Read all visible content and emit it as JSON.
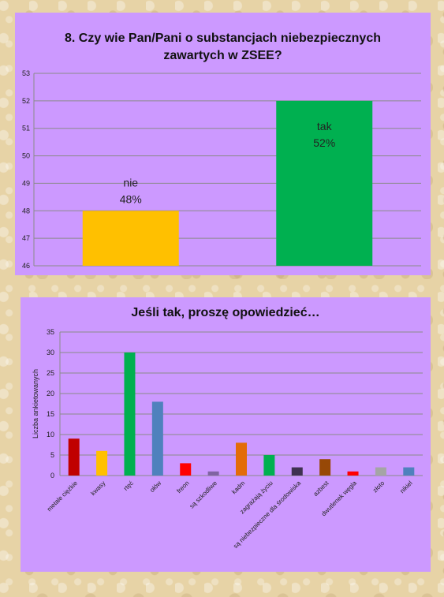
{
  "chart_data": [
    {
      "type": "bar",
      "title_lines": [
        "8. Czy wie Pan/Pani o substancjach niebezpiecznych",
        "zawartych w ZSEE?"
      ],
      "categories": [
        "nie",
        "tak"
      ],
      "values": [
        48,
        52
      ],
      "data_labels": [
        [
          "nie",
          "48%"
        ],
        [
          "tak",
          "52%"
        ]
      ],
      "colors": [
        "#ffc000",
        "#00b050"
      ],
      "ylim": [
        46,
        53
      ],
      "yticks": [
        46,
        47,
        48,
        49,
        50,
        51,
        52,
        53
      ],
      "grid": true,
      "legend": "none"
    },
    {
      "type": "bar",
      "title": "Jeśli tak, proszę opowiedzieć…",
      "ylabel": "Liczba ankietowanych",
      "categories": [
        "metale ciężkie",
        "kwasy",
        "rtęć",
        "ołów",
        "freon",
        "są szkodliwe",
        "kadm",
        "zagrażają życiu",
        "są niebezpieczne dla środowiska",
        "azbest",
        "dwutlenek węgla",
        "złoto",
        "nikiel"
      ],
      "values": [
        9,
        6,
        30,
        18,
        3,
        1,
        8,
        5,
        2,
        4,
        1,
        2,
        2
      ],
      "colors": [
        "#c00000",
        "#ffc000",
        "#00b050",
        "#4f81bd",
        "#ff0000",
        "#8064a2",
        "#e36c09",
        "#00b050",
        "#3f3151",
        "#974806",
        "#ff0000",
        "#a5a5a5",
        "#4f81bd"
      ],
      "ylim": [
        0,
        35
      ],
      "yticks": [
        0,
        5,
        10,
        15,
        20,
        25,
        30,
        35
      ],
      "grid": true,
      "legend": "none"
    }
  ]
}
